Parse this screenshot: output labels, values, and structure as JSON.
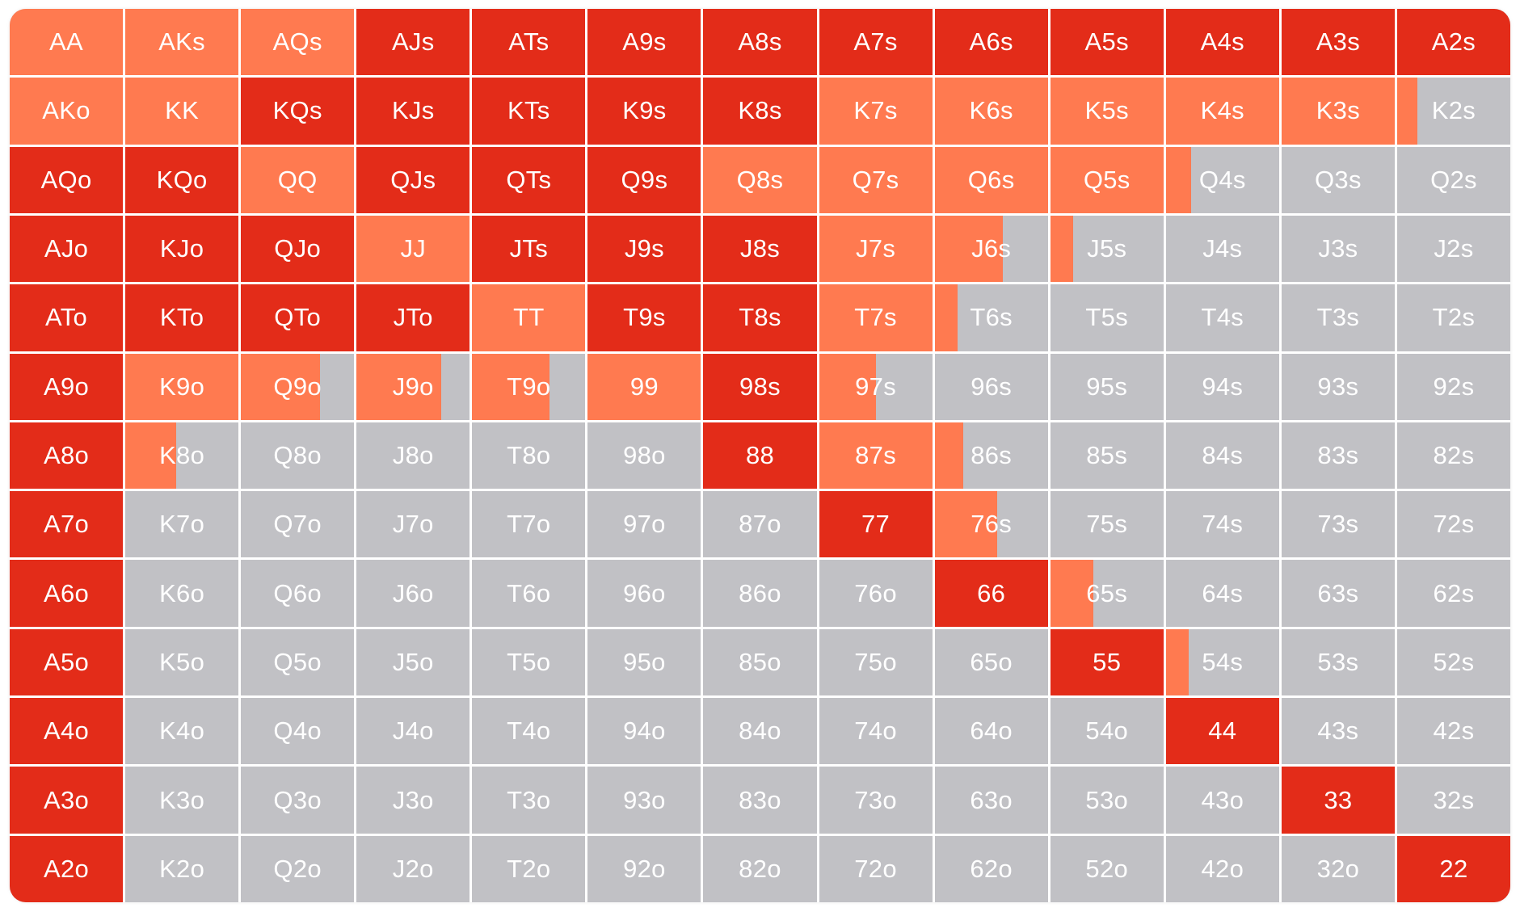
{
  "chart_data": {
    "type": "heatmap",
    "colors": {
      "red": "#e32c19",
      "orange": "#ff7a50",
      "gray": "#c1c1c5"
    },
    "legend_classes": [
      "red",
      "orange",
      "gray"
    ],
    "rows": [
      [
        {
          "hand": "AA",
          "class": "orange",
          "frac": 1
        },
        {
          "hand": "AKs",
          "class": "orange",
          "frac": 1
        },
        {
          "hand": "AQs",
          "class": "orange",
          "frac": 1
        },
        {
          "hand": "AJs",
          "class": "red",
          "frac": 1
        },
        {
          "hand": "ATs",
          "class": "red",
          "frac": 1
        },
        {
          "hand": "A9s",
          "class": "red",
          "frac": 1
        },
        {
          "hand": "A8s",
          "class": "red",
          "frac": 1
        },
        {
          "hand": "A7s",
          "class": "red",
          "frac": 1
        },
        {
          "hand": "A6s",
          "class": "red",
          "frac": 1
        },
        {
          "hand": "A5s",
          "class": "red",
          "frac": 1
        },
        {
          "hand": "A4s",
          "class": "red",
          "frac": 1
        },
        {
          "hand": "A3s",
          "class": "red",
          "frac": 1
        },
        {
          "hand": "A2s",
          "class": "red",
          "frac": 1
        }
      ],
      [
        {
          "hand": "AKo",
          "class": "orange",
          "frac": 1
        },
        {
          "hand": "KK",
          "class": "orange",
          "frac": 1
        },
        {
          "hand": "KQs",
          "class": "red",
          "frac": 1
        },
        {
          "hand": "KJs",
          "class": "red",
          "frac": 1
        },
        {
          "hand": "KTs",
          "class": "red",
          "frac": 1
        },
        {
          "hand": "K9s",
          "class": "red",
          "frac": 1
        },
        {
          "hand": "K8s",
          "class": "red",
          "frac": 1
        },
        {
          "hand": "K7s",
          "class": "orange",
          "frac": 1
        },
        {
          "hand": "K6s",
          "class": "orange",
          "frac": 1
        },
        {
          "hand": "K5s",
          "class": "orange",
          "frac": 1
        },
        {
          "hand": "K4s",
          "class": "orange",
          "frac": 1
        },
        {
          "hand": "K3s",
          "class": "orange",
          "frac": 1
        },
        {
          "hand": "K2s",
          "class": "orange",
          "frac": 0.18
        }
      ],
      [
        {
          "hand": "AQo",
          "class": "red",
          "frac": 1
        },
        {
          "hand": "KQo",
          "class": "red",
          "frac": 1
        },
        {
          "hand": "QQ",
          "class": "orange",
          "frac": 1
        },
        {
          "hand": "QJs",
          "class": "red",
          "frac": 1
        },
        {
          "hand": "QTs",
          "class": "red",
          "frac": 1
        },
        {
          "hand": "Q9s",
          "class": "red",
          "frac": 1
        },
        {
          "hand": "Q8s",
          "class": "orange",
          "frac": 1
        },
        {
          "hand": "Q7s",
          "class": "orange",
          "frac": 1
        },
        {
          "hand": "Q6s",
          "class": "orange",
          "frac": 1
        },
        {
          "hand": "Q5s",
          "class": "orange",
          "frac": 1
        },
        {
          "hand": "Q4s",
          "class": "orange",
          "frac": 0.22
        },
        {
          "hand": "Q3s",
          "class": "gray",
          "frac": 0
        },
        {
          "hand": "Q2s",
          "class": "gray",
          "frac": 0
        }
      ],
      [
        {
          "hand": "AJo",
          "class": "red",
          "frac": 1
        },
        {
          "hand": "KJo",
          "class": "red",
          "frac": 1
        },
        {
          "hand": "QJo",
          "class": "red",
          "frac": 1
        },
        {
          "hand": "JJ",
          "class": "orange",
          "frac": 1
        },
        {
          "hand": "JTs",
          "class": "red",
          "frac": 1
        },
        {
          "hand": "J9s",
          "class": "red",
          "frac": 1
        },
        {
          "hand": "J8s",
          "class": "red",
          "frac": 1
        },
        {
          "hand": "J7s",
          "class": "orange",
          "frac": 1
        },
        {
          "hand": "J6s",
          "class": "orange",
          "frac": 0.6
        },
        {
          "hand": "J5s",
          "class": "orange",
          "frac": 0.2
        },
        {
          "hand": "J4s",
          "class": "gray",
          "frac": 0
        },
        {
          "hand": "J3s",
          "class": "gray",
          "frac": 0
        },
        {
          "hand": "J2s",
          "class": "gray",
          "frac": 0
        }
      ],
      [
        {
          "hand": "ATo",
          "class": "red",
          "frac": 1
        },
        {
          "hand": "KTo",
          "class": "red",
          "frac": 1
        },
        {
          "hand": "QTo",
          "class": "red",
          "frac": 1
        },
        {
          "hand": "JTo",
          "class": "red",
          "frac": 1
        },
        {
          "hand": "TT",
          "class": "orange",
          "frac": 1
        },
        {
          "hand": "T9s",
          "class": "red",
          "frac": 1
        },
        {
          "hand": "T8s",
          "class": "red",
          "frac": 1
        },
        {
          "hand": "T7s",
          "class": "orange",
          "frac": 1
        },
        {
          "hand": "T6s",
          "class": "orange",
          "frac": 0.2
        },
        {
          "hand": "T5s",
          "class": "gray",
          "frac": 0
        },
        {
          "hand": "T4s",
          "class": "gray",
          "frac": 0
        },
        {
          "hand": "T3s",
          "class": "gray",
          "frac": 0
        },
        {
          "hand": "T2s",
          "class": "gray",
          "frac": 0
        }
      ],
      [
        {
          "hand": "A9o",
          "class": "red",
          "frac": 1
        },
        {
          "hand": "K9o",
          "class": "orange",
          "frac": 1
        },
        {
          "hand": "Q9o",
          "class": "orange",
          "frac": 0.7
        },
        {
          "hand": "J9o",
          "class": "orange",
          "frac": 0.75
        },
        {
          "hand": "T9o",
          "class": "orange",
          "frac": 0.68
        },
        {
          "hand": "99",
          "class": "orange",
          "frac": 1
        },
        {
          "hand": "98s",
          "class": "red",
          "frac": 1
        },
        {
          "hand": "97s",
          "class": "orange",
          "frac": 0.5
        },
        {
          "hand": "96s",
          "class": "gray",
          "frac": 0
        },
        {
          "hand": "95s",
          "class": "gray",
          "frac": 0
        },
        {
          "hand": "94s",
          "class": "gray",
          "frac": 0
        },
        {
          "hand": "93s",
          "class": "gray",
          "frac": 0
        },
        {
          "hand": "92s",
          "class": "gray",
          "frac": 0
        }
      ],
      [
        {
          "hand": "A8o",
          "class": "red",
          "frac": 1
        },
        {
          "hand": "K8o",
          "class": "orange",
          "frac": 0.45
        },
        {
          "hand": "Q8o",
          "class": "gray",
          "frac": 0
        },
        {
          "hand": "J8o",
          "class": "gray",
          "frac": 0
        },
        {
          "hand": "T8o",
          "class": "gray",
          "frac": 0
        },
        {
          "hand": "98o",
          "class": "gray",
          "frac": 0
        },
        {
          "hand": "88",
          "class": "red",
          "frac": 1
        },
        {
          "hand": "87s",
          "class": "orange",
          "frac": 1
        },
        {
          "hand": "86s",
          "class": "orange",
          "frac": 0.25
        },
        {
          "hand": "85s",
          "class": "gray",
          "frac": 0
        },
        {
          "hand": "84s",
          "class": "gray",
          "frac": 0
        },
        {
          "hand": "83s",
          "class": "gray",
          "frac": 0
        },
        {
          "hand": "82s",
          "class": "gray",
          "frac": 0
        }
      ],
      [
        {
          "hand": "A7o",
          "class": "red",
          "frac": 1
        },
        {
          "hand": "K7o",
          "class": "gray",
          "frac": 0
        },
        {
          "hand": "Q7o",
          "class": "gray",
          "frac": 0
        },
        {
          "hand": "J7o",
          "class": "gray",
          "frac": 0
        },
        {
          "hand": "T7o",
          "class": "gray",
          "frac": 0
        },
        {
          "hand": "97o",
          "class": "gray",
          "frac": 0
        },
        {
          "hand": "87o",
          "class": "gray",
          "frac": 0
        },
        {
          "hand": "77",
          "class": "red",
          "frac": 1
        },
        {
          "hand": "76s",
          "class": "orange",
          "frac": 0.55
        },
        {
          "hand": "75s",
          "class": "gray",
          "frac": 0
        },
        {
          "hand": "74s",
          "class": "gray",
          "frac": 0
        },
        {
          "hand": "73s",
          "class": "gray",
          "frac": 0
        },
        {
          "hand": "72s",
          "class": "gray",
          "frac": 0
        }
      ],
      [
        {
          "hand": "A6o",
          "class": "red",
          "frac": 1
        },
        {
          "hand": "K6o",
          "class": "gray",
          "frac": 0
        },
        {
          "hand": "Q6o",
          "class": "gray",
          "frac": 0
        },
        {
          "hand": "J6o",
          "class": "gray",
          "frac": 0
        },
        {
          "hand": "T6o",
          "class": "gray",
          "frac": 0
        },
        {
          "hand": "96o",
          "class": "gray",
          "frac": 0
        },
        {
          "hand": "86o",
          "class": "gray",
          "frac": 0
        },
        {
          "hand": "76o",
          "class": "gray",
          "frac": 0
        },
        {
          "hand": "66",
          "class": "red",
          "frac": 1
        },
        {
          "hand": "65s",
          "class": "orange",
          "frac": 0.38
        },
        {
          "hand": "64s",
          "class": "gray",
          "frac": 0
        },
        {
          "hand": "63s",
          "class": "gray",
          "frac": 0
        },
        {
          "hand": "62s",
          "class": "gray",
          "frac": 0
        }
      ],
      [
        {
          "hand": "A5o",
          "class": "red",
          "frac": 1
        },
        {
          "hand": "K5o",
          "class": "gray",
          "frac": 0
        },
        {
          "hand": "Q5o",
          "class": "gray",
          "frac": 0
        },
        {
          "hand": "J5o",
          "class": "gray",
          "frac": 0
        },
        {
          "hand": "T5o",
          "class": "gray",
          "frac": 0
        },
        {
          "hand": "95o",
          "class": "gray",
          "frac": 0
        },
        {
          "hand": "85o",
          "class": "gray",
          "frac": 0
        },
        {
          "hand": "75o",
          "class": "gray",
          "frac": 0
        },
        {
          "hand": "65o",
          "class": "gray",
          "frac": 0
        },
        {
          "hand": "55",
          "class": "red",
          "frac": 1
        },
        {
          "hand": "54s",
          "class": "orange",
          "frac": 0.2
        },
        {
          "hand": "53s",
          "class": "gray",
          "frac": 0
        },
        {
          "hand": "52s",
          "class": "gray",
          "frac": 0
        }
      ],
      [
        {
          "hand": "A4o",
          "class": "red",
          "frac": 1
        },
        {
          "hand": "K4o",
          "class": "gray",
          "frac": 0
        },
        {
          "hand": "Q4o",
          "class": "gray",
          "frac": 0
        },
        {
          "hand": "J4o",
          "class": "gray",
          "frac": 0
        },
        {
          "hand": "T4o",
          "class": "gray",
          "frac": 0
        },
        {
          "hand": "94o",
          "class": "gray",
          "frac": 0
        },
        {
          "hand": "84o",
          "class": "gray",
          "frac": 0
        },
        {
          "hand": "74o",
          "class": "gray",
          "frac": 0
        },
        {
          "hand": "64o",
          "class": "gray",
          "frac": 0
        },
        {
          "hand": "54o",
          "class": "gray",
          "frac": 0
        },
        {
          "hand": "44",
          "class": "red",
          "frac": 1
        },
        {
          "hand": "43s",
          "class": "gray",
          "frac": 0
        },
        {
          "hand": "42s",
          "class": "gray",
          "frac": 0
        }
      ],
      [
        {
          "hand": "A3o",
          "class": "red",
          "frac": 1
        },
        {
          "hand": "K3o",
          "class": "gray",
          "frac": 0
        },
        {
          "hand": "Q3o",
          "class": "gray",
          "frac": 0
        },
        {
          "hand": "J3o",
          "class": "gray",
          "frac": 0
        },
        {
          "hand": "T3o",
          "class": "gray",
          "frac": 0
        },
        {
          "hand": "93o",
          "class": "gray",
          "frac": 0
        },
        {
          "hand": "83o",
          "class": "gray",
          "frac": 0
        },
        {
          "hand": "73o",
          "class": "gray",
          "frac": 0
        },
        {
          "hand": "63o",
          "class": "gray",
          "frac": 0
        },
        {
          "hand": "53o",
          "class": "gray",
          "frac": 0
        },
        {
          "hand": "43o",
          "class": "gray",
          "frac": 0
        },
        {
          "hand": "33",
          "class": "red",
          "frac": 1
        },
        {
          "hand": "32s",
          "class": "gray",
          "frac": 0
        }
      ],
      [
        {
          "hand": "A2o",
          "class": "red",
          "frac": 1
        },
        {
          "hand": "K2o",
          "class": "gray",
          "frac": 0
        },
        {
          "hand": "Q2o",
          "class": "gray",
          "frac": 0
        },
        {
          "hand": "J2o",
          "class": "gray",
          "frac": 0
        },
        {
          "hand": "T2o",
          "class": "gray",
          "frac": 0
        },
        {
          "hand": "92o",
          "class": "gray",
          "frac": 0
        },
        {
          "hand": "82o",
          "class": "gray",
          "frac": 0
        },
        {
          "hand": "72o",
          "class": "gray",
          "frac": 0
        },
        {
          "hand": "62o",
          "class": "gray",
          "frac": 0
        },
        {
          "hand": "52o",
          "class": "gray",
          "frac": 0
        },
        {
          "hand": "42o",
          "class": "gray",
          "frac": 0
        },
        {
          "hand": "32o",
          "class": "gray",
          "frac": 0
        },
        {
          "hand": "22",
          "class": "red",
          "frac": 1
        }
      ]
    ]
  }
}
